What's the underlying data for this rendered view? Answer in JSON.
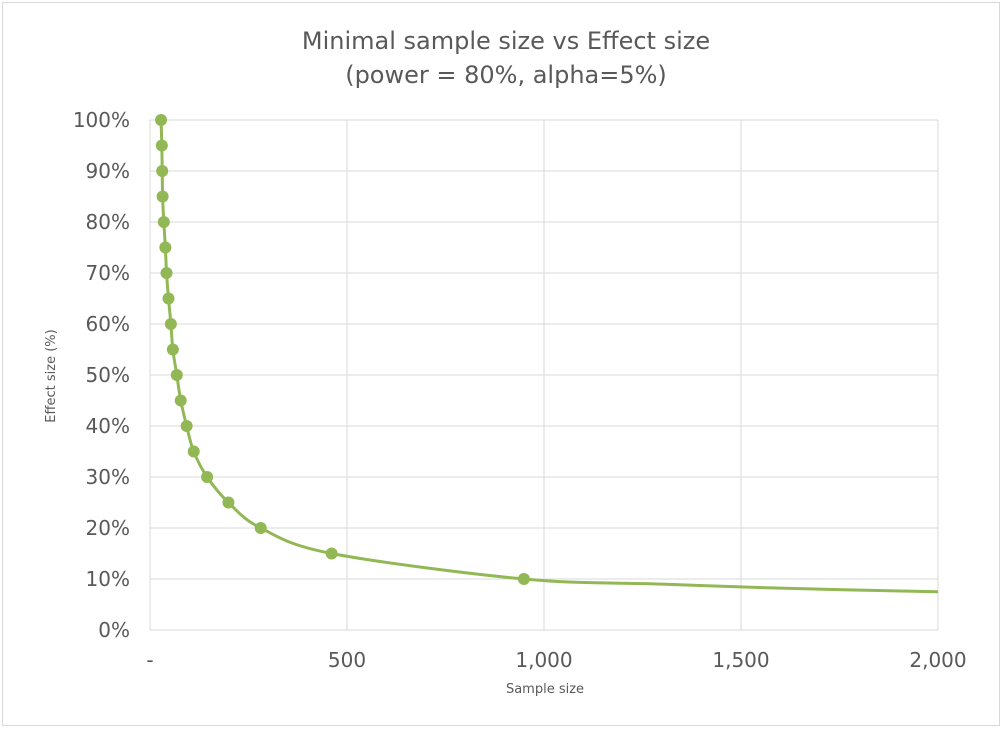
{
  "chart_data": {
    "type": "scatter",
    "title": "Minimal  sample  size  vs Effect size",
    "subtitle": "(power = 80%, alpha=5%)",
    "xlabel": "Sample size",
    "ylabel": "Effect size (%)",
    "xlim": [
      0,
      2000
    ],
    "ylim": [
      0,
      1
    ],
    "x_ticks": [
      0,
      500,
      1000,
      1500,
      2000
    ],
    "x_tick_labels": [
      "-",
      "500",
      "1,000",
      "1,500",
      "2,000"
    ],
    "y_ticks": [
      0,
      0.1,
      0.2,
      0.3,
      0.4,
      0.5,
      0.6,
      0.7,
      0.8,
      0.9,
      1.0
    ],
    "y_tick_labels": [
      "0%",
      "10%",
      "20%",
      "30%",
      "40%",
      "50%",
      "60%",
      "70%",
      "80%",
      "90%",
      "100%"
    ],
    "grid": true,
    "legend": "none",
    "color": "#92b855",
    "series": [
      {
        "points": [
          {
            "x": 28,
            "y": 1.0
          },
          {
            "x": 30,
            "y": 0.95
          },
          {
            "x": 31,
            "y": 0.9
          },
          {
            "x": 32,
            "y": 0.85
          },
          {
            "x": 35,
            "y": 0.8
          },
          {
            "x": 39,
            "y": 0.75
          },
          {
            "x": 42,
            "y": 0.7
          },
          {
            "x": 47,
            "y": 0.65
          },
          {
            "x": 53,
            "y": 0.6
          },
          {
            "x": 58,
            "y": 0.55
          },
          {
            "x": 68,
            "y": 0.5
          },
          {
            "x": 78,
            "y": 0.45
          },
          {
            "x": 93,
            "y": 0.4
          },
          {
            "x": 111,
            "y": 0.35
          },
          {
            "x": 145,
            "y": 0.3
          },
          {
            "x": 199,
            "y": 0.25
          },
          {
            "x": 281,
            "y": 0.2
          },
          {
            "x": 461,
            "y": 0.15
          },
          {
            "x": 949,
            "y": 0.1
          }
        ],
        "trend": [
          {
            "x": 1300,
            "y": 0.09
          },
          {
            "x": 1600,
            "y": 0.082
          },
          {
            "x": 2000,
            "y": 0.075
          }
        ]
      }
    ]
  }
}
